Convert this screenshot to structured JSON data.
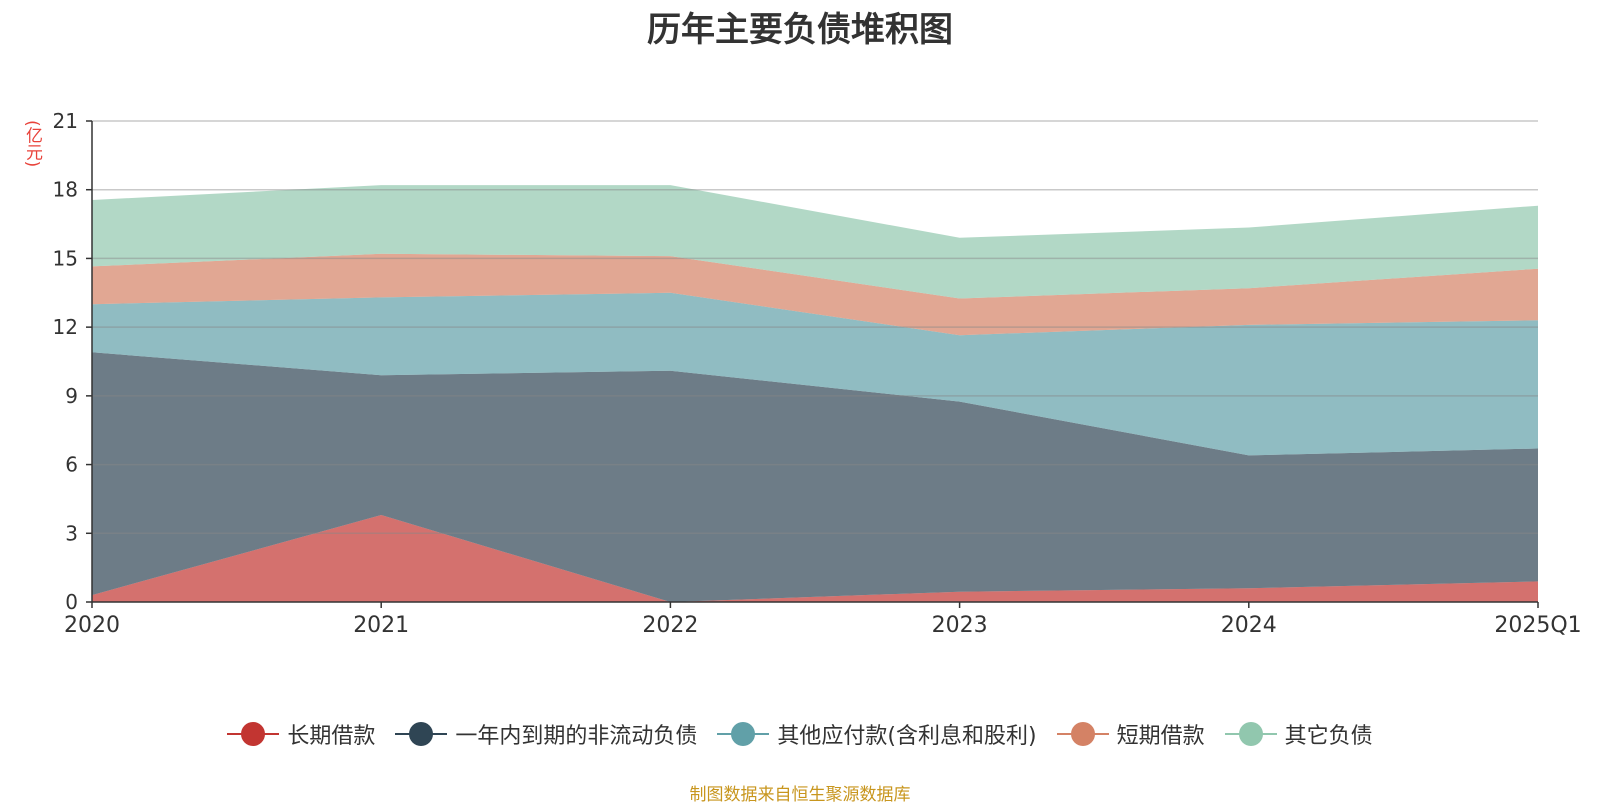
{
  "chart_data": {
    "type": "area",
    "stacked": true,
    "title": "历年主要负债堆积图",
    "ylabel": "(亿元)",
    "xlabel": "",
    "categories": [
      "2020",
      "2021",
      "2022",
      "2023",
      "2024",
      "2025Q1"
    ],
    "ylim": [
      0,
      21
    ],
    "yticks": [
      0,
      3,
      6,
      9,
      12,
      15,
      18,
      21
    ],
    "grid": true,
    "legend_position": "bottom",
    "series": [
      {
        "name": "长期借款",
        "color": "#c23531",
        "values": [
          0.3,
          3.8,
          0.0,
          0.45,
          0.6,
          0.9
        ]
      },
      {
        "name": "一年内到期的非流动负债",
        "color": "#2f4554",
        "values": [
          10.6,
          6.1,
          10.1,
          8.3,
          5.8,
          5.8
        ]
      },
      {
        "name": "其他应付款(含利息和股利)",
        "color": "#61a0a8",
        "values": [
          2.1,
          3.4,
          3.4,
          2.9,
          5.7,
          5.6
        ]
      },
      {
        "name": "短期借款",
        "color": "#d48265",
        "values": [
          1.65,
          1.9,
          1.6,
          1.6,
          1.6,
          2.25
        ]
      },
      {
        "name": "其它负债",
        "color": "#91c7ae",
        "values": [
          2.9,
          3.0,
          3.1,
          2.65,
          2.65,
          2.75
        ]
      }
    ]
  },
  "source_note": "制图数据来自恒生聚源数据库"
}
